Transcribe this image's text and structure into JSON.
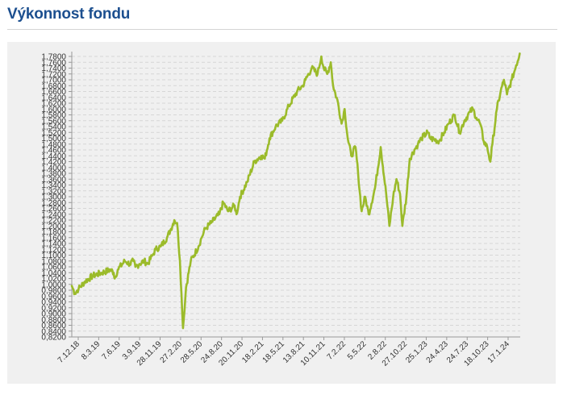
{
  "title": "Výkonnost fondu",
  "chart_data": {
    "type": "line",
    "title": "Výkonnost fondu",
    "xlabel": "",
    "ylabel": "",
    "ylim": [
      0.82,
      1.78
    ],
    "y_ticks": [
      "1,7800",
      "1,7600",
      "1,7400",
      "1,7200",
      "1,7000",
      "1,6800",
      "1,6600",
      "1,6400",
      "1,6200",
      "1,6000",
      "1,5800",
      "1,5600",
      "1,5400",
      "1,5200",
      "1,5000",
      "1,4800",
      "1,4600",
      "1,4400",
      "1,4200",
      "1,4000",
      "1,3800",
      "1,3600",
      "1,3400",
      "1,3200",
      "1,3000",
      "1,2800",
      "1,2600",
      "1,2400",
      "1,2200",
      "1,2000",
      "1,1800",
      "1,1600",
      "1,1400",
      "1,1200",
      "1,1000",
      "1,0800",
      "1,0600",
      "1,0400",
      "1,0200",
      "1,0000",
      "0,9800",
      "0,9600",
      "0,9400",
      "0,9200",
      "0,9000",
      "0,8800",
      "0,8600",
      "0,8400",
      "0,8200"
    ],
    "x_ticks": [
      "7.12.18",
      "8.3.19",
      "7.6.19",
      "3.9.19",
      "28.11.19",
      "27.2.20",
      "28.5.20",
      "24.8.20",
      "20.11.20",
      "18.2.21",
      "18.5.21",
      "13.8.21",
      "10.11.21",
      "7.2.22",
      "5.5.22",
      "2.8.22",
      "27.10.22",
      "25.1.23",
      "24.4.23",
      "24.7.23",
      "18.10.23",
      "17.1.24"
    ],
    "grid": true,
    "color": "#9bbb2a",
    "series": [
      {
        "x": [
          "2018-12-07",
          "2018-12-12",
          "2018-12-20",
          "2019-01-05",
          "2019-02-01",
          "2019-03-08",
          "2019-04-15",
          "2019-05-20",
          "2019-06-03",
          "2019-06-07",
          "2019-06-20",
          "2019-07-20",
          "2019-08-10",
          "2019-08-25",
          "2019-09-03",
          "2019-09-20",
          "2019-10-10",
          "2019-10-25",
          "2019-11-15",
          "2019-11-28",
          "2019-12-20",
          "2020-01-15",
          "2020-02-01",
          "2020-02-15",
          "2020-02-27",
          "2020-03-10",
          "2020-03-23",
          "2020-04-05",
          "2020-04-25",
          "2020-05-28",
          "2020-06-10",
          "2020-06-25",
          "2020-07-20",
          "2020-08-24",
          "2020-09-10",
          "2020-09-30",
          "2020-10-28",
          "2020-11-05",
          "2020-11-20",
          "2020-12-20",
          "2021-01-20",
          "2021-02-18",
          "2021-03-05",
          "2021-03-25",
          "2021-04-20",
          "2021-05-18",
          "2021-06-15",
          "2021-07-20",
          "2021-08-13",
          "2021-08-25",
          "2021-09-20",
          "2021-10-15",
          "2021-10-31",
          "2021-11-10",
          "2021-11-25",
          "2021-12-10",
          "2021-12-20",
          "2022-01-10",
          "2022-01-25",
          "2022-02-07",
          "2022-02-20",
          "2022-03-07",
          "2022-03-25",
          "2022-04-05",
          "2022-04-20",
          "2022-05-05",
          "2022-05-20",
          "2022-06-16",
          "2022-07-10",
          "2022-08-02",
          "2022-08-16",
          "2022-09-01",
          "2022-09-15",
          "2022-09-30",
          "2022-10-10",
          "2022-10-27",
          "2022-11-10",
          "2022-11-30",
          "2022-12-15",
          "2022-12-30",
          "2023-01-25",
          "2023-02-05",
          "2023-03-15",
          "2023-04-05",
          "2023-04-24",
          "2023-05-20",
          "2023-06-10",
          "2023-06-30",
          "2023-07-24",
          "2023-08-05",
          "2023-08-20",
          "2023-09-05",
          "2023-09-20",
          "2023-10-05",
          "2023-10-18",
          "2023-10-27",
          "2023-11-15",
          "2023-12-01",
          "2023-12-15",
          "2023-12-28",
          "2024-01-17",
          "2024-02-05",
          "2024-02-20"
        ],
        "y": [
          0.995,
          0.985,
          0.97,
          0.985,
          1.01,
          1.03,
          1.04,
          1.05,
          1.04,
          1.02,
          1.05,
          1.08,
          1.07,
          1.08,
          1.06,
          1.07,
          1.08,
          1.07,
          1.1,
          1.12,
          1.13,
          1.16,
          1.19,
          1.22,
          1.21,
          1.08,
          0.85,
          0.99,
          1.08,
          1.13,
          1.16,
          1.19,
          1.21,
          1.24,
          1.28,
          1.25,
          1.27,
          1.24,
          1.3,
          1.35,
          1.42,
          1.44,
          1.43,
          1.5,
          1.54,
          1.56,
          1.61,
          1.66,
          1.68,
          1.7,
          1.74,
          1.72,
          1.78,
          1.74,
          1.72,
          1.76,
          1.68,
          1.62,
          1.55,
          1.6,
          1.5,
          1.44,
          1.47,
          1.38,
          1.25,
          1.3,
          1.24,
          1.33,
          1.47,
          1.31,
          1.2,
          1.3,
          1.36,
          1.31,
          1.2,
          1.3,
          1.43,
          1.46,
          1.48,
          1.5,
          1.52,
          1.5,
          1.49,
          1.52,
          1.55,
          1.58,
          1.52,
          1.56,
          1.59,
          1.6,
          1.57,
          1.55,
          1.49,
          1.47,
          1.42,
          1.48,
          1.6,
          1.66,
          1.7,
          1.65,
          1.7,
          1.75,
          1.79
        ]
      }
    ]
  }
}
